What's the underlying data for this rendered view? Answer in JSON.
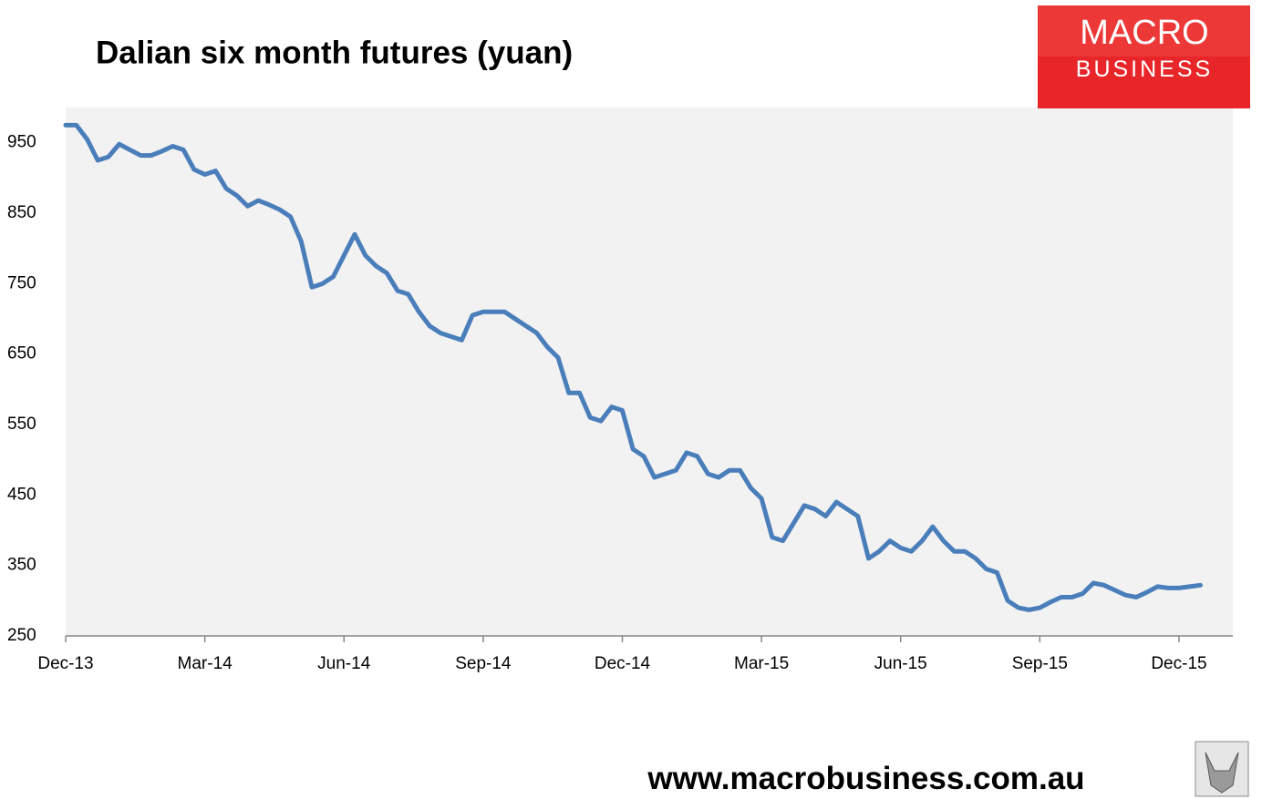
{
  "chart_data": {
    "type": "line",
    "title": "Dalian six month futures (yuan)",
    "categories": [
      "Dec-13",
      null,
      null,
      null,
      null,
      null,
      null,
      null,
      null,
      null,
      null,
      null,
      null,
      "Mar-14",
      null,
      null,
      null,
      null,
      null,
      null,
      null,
      null,
      null,
      null,
      null,
      null,
      "Jun-14",
      null,
      null,
      null,
      null,
      null,
      null,
      null,
      null,
      null,
      null,
      null,
      null,
      "Sep-14",
      null,
      null,
      null,
      null,
      null,
      null,
      null,
      null,
      null,
      null,
      null,
      null,
      "Dec-14",
      null,
      null,
      null,
      null,
      null,
      null,
      null,
      null,
      null,
      null,
      null,
      null,
      "Mar-15",
      null,
      null,
      null,
      null,
      null,
      null,
      null,
      null,
      null,
      null,
      null,
      null,
      "Jun-15",
      null,
      null,
      null,
      null,
      null,
      null,
      null,
      null,
      null,
      null,
      null,
      null,
      "Sep-15",
      null,
      null,
      null,
      null,
      null,
      null,
      null,
      null,
      null,
      null,
      null,
      null,
      "Dec-15",
      null,
      null
    ],
    "values": [
      975,
      975,
      955,
      925,
      930,
      948,
      940,
      932,
      932,
      938,
      945,
      940,
      912,
      905,
      910,
      885,
      875,
      860,
      868,
      862,
      855,
      845,
      810,
      745,
      750,
      760,
      790,
      820,
      790,
      775,
      765,
      740,
      735,
      710,
      690,
      680,
      675,
      670,
      705,
      710,
      710,
      710,
      700,
      690,
      680,
      660,
      645,
      595,
      595,
      560,
      555,
      575,
      570,
      515,
      505,
      475,
      480,
      485,
      510,
      505,
      480,
      475,
      485,
      485,
      460,
      445,
      390,
      385,
      410,
      435,
      430,
      420,
      440,
      430,
      420,
      360,
      370,
      385,
      375,
      370,
      385,
      405,
      385,
      370,
      370,
      360,
      345,
      340,
      300,
      290,
      287,
      290,
      298,
      305,
      305,
      310,
      325,
      322,
      315,
      308,
      305,
      312,
      320,
      318,
      318,
      320,
      322
    ],
    "color": "#4a7ebb",
    "ylim": [
      250,
      1000
    ],
    "yticks": [
      250,
      350,
      450,
      550,
      650,
      750,
      850,
      950
    ]
  },
  "logo": [
    "MACRO",
    "BUSINESS"
  ],
  "footer": "www.macrobusiness.com.au"
}
